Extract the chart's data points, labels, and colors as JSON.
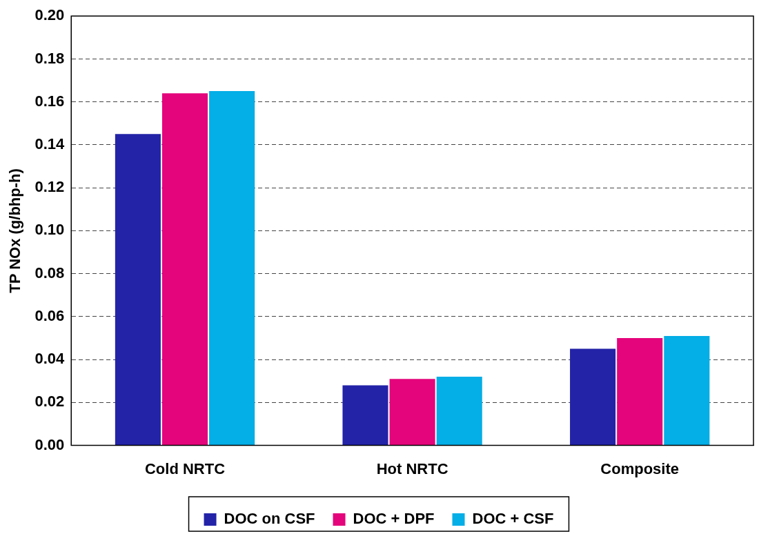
{
  "chart_data": {
    "type": "bar",
    "ylabel": "TP NOx (g/bhp-h)",
    "categories": [
      "Cold NRTC",
      "Hot NRTC",
      "Composite"
    ],
    "series": [
      {
        "name": "DOC on CSF",
        "color": "#2323a8",
        "values": [
          0.145,
          0.028,
          0.045
        ]
      },
      {
        "name": "DOC + DPF",
        "color": "#e4047c",
        "values": [
          0.164,
          0.031,
          0.05
        ]
      },
      {
        "name": "DOC + CSF",
        "color": "#04aee6",
        "values": [
          0.165,
          0.032,
          0.051
        ]
      }
    ],
    "ylim": [
      0,
      0.2
    ],
    "yticks": [
      {
        "value": 0,
        "label": "0.00"
      },
      {
        "value": 0.02,
        "label": "0.02"
      },
      {
        "value": 0.04,
        "label": "0.04"
      },
      {
        "value": 0.06,
        "label": "0.06"
      },
      {
        "value": 0.08,
        "label": "0.08"
      },
      {
        "value": 0.1,
        "label": "0.10"
      },
      {
        "value": 0.12,
        "label": "0.12"
      },
      {
        "value": 0.14,
        "label": "0.14"
      },
      {
        "value": 0.16,
        "label": "0.16"
      },
      {
        "value": 0.18,
        "label": "0.18"
      },
      {
        "value": 0.2,
        "label": "0.20"
      }
    ],
    "grid": "y",
    "legend": "bottom"
  }
}
